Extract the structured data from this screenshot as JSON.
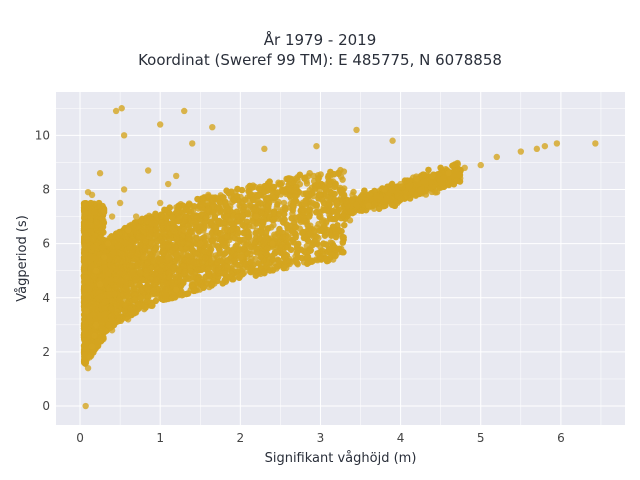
{
  "chart_data": {
    "type": "scatter",
    "title": "År 1979 - 2019",
    "subtitle": "Koordinat (Sweref 99 TM): E 485775, N 6078858",
    "xlabel": "Signifikant våghöjd (m)",
    "ylabel": "Vågperiod (s)",
    "xlim": [
      -0.3,
      6.8
    ],
    "ylim": [
      -0.7,
      11.6
    ],
    "xticks": [
      "0",
      "1",
      "2",
      "3",
      "4",
      "5",
      "6"
    ],
    "yticks": [
      "0",
      "2",
      "4",
      "6",
      "8",
      "10"
    ],
    "grid": true,
    "marker_color": "#D4A520",
    "background": "#E8E9F1",
    "x": [
      0.07,
      0.1,
      0.12,
      0.15,
      0.18,
      0.2,
      0.25,
      0.3,
      0.35,
      0.4,
      0.5,
      0.55,
      0.6,
      0.7,
      0.8,
      0.9,
      1.0,
      1.1,
      1.2,
      1.3,
      1.5,
      1.6,
      1.8,
      2.0,
      2.2,
      2.4,
      2.6,
      2.8,
      3.0,
      3.2,
      3.4,
      3.6,
      3.8,
      4.0,
      4.2,
      4.4,
      4.6,
      4.8,
      5.0,
      5.2,
      5.5,
      5.7,
      5.8,
      5.95,
      6.43,
      0.45,
      0.52,
      1.0,
      1.3,
      1.65,
      3.45,
      3.9,
      2.3,
      2.95,
      1.4,
      0.55,
      0.85,
      0.08,
      0.1,
      0.3,
      1.2,
      2.0,
      2.7,
      0.2,
      0.6,
      0.4,
      0.9,
      1.1,
      0.15,
      0.25
    ],
    "y": [
      0.0,
      1.4,
      1.8,
      2.2,
      2.6,
      3.0,
      4.5,
      5.5,
      6.0,
      7.0,
      7.5,
      8.0,
      6.5,
      7.0,
      5.5,
      6.0,
      7.5,
      5.5,
      8.5,
      6.5,
      6.0,
      7.8,
      6.5,
      5.5,
      7.0,
      6.0,
      6.2,
      7.5,
      7.0,
      7.5,
      7.8,
      7.4,
      8.0,
      8.2,
      8.4,
      8.5,
      8.6,
      8.8,
      8.9,
      9.2,
      9.4,
      9.5,
      9.6,
      9.7,
      9.7,
      10.9,
      11.0,
      10.4,
      10.9,
      10.3,
      10.2,
      9.8,
      9.5,
      9.6,
      9.7,
      10.0,
      8.7,
      3.5,
      7.9,
      7.2,
      4.3,
      4.8,
      5.3,
      5.0,
      3.2,
      2.8,
      3.7,
      8.2,
      7.8,
      8.6
    ]
  }
}
